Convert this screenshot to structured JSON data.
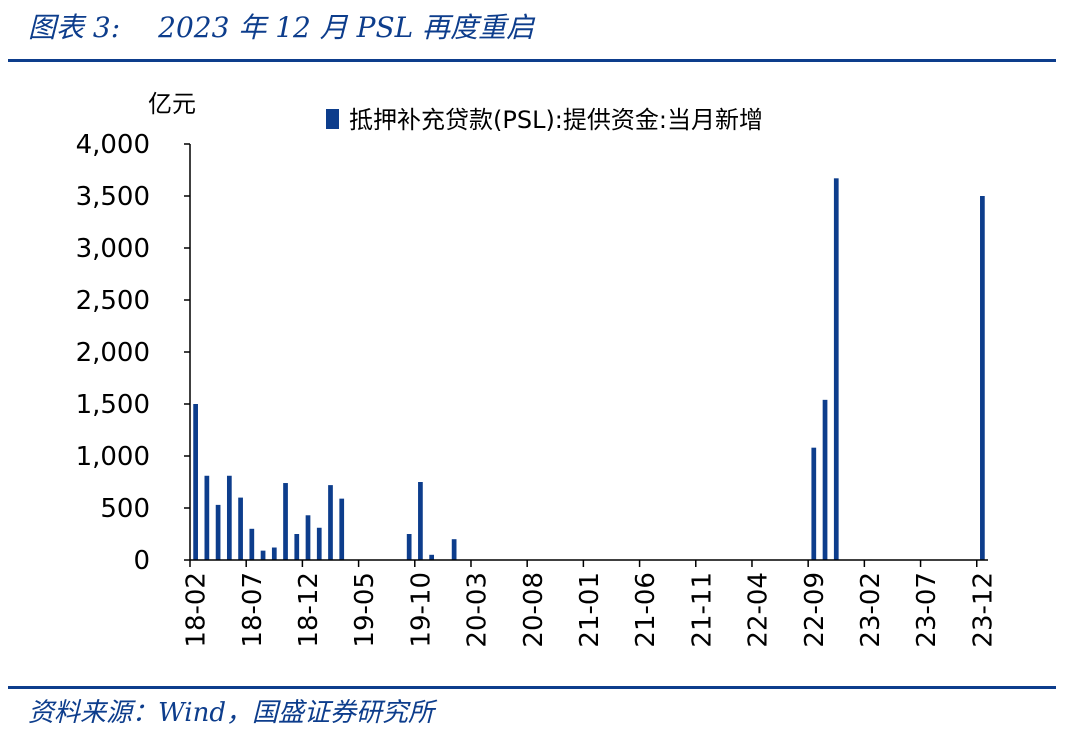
{
  "figure": {
    "number": "图表 3:",
    "title": "2023 年 12 月 PSL 再度重启",
    "source": "资料来源：Wind，国盛证券研究所"
  },
  "chart_data": {
    "type": "bar",
    "ylabel": "亿元",
    "ylim": [
      0,
      4000
    ],
    "yticks": [
      0,
      500,
      1000,
      1500,
      2000,
      2500,
      3000,
      3500,
      4000
    ],
    "ytick_labels": [
      "0",
      "500",
      "1,000",
      "1,500",
      "2,000",
      "2,500",
      "3,000",
      "3,500",
      "4,000"
    ],
    "xtick_labels": [
      "18-02",
      "18-07",
      "18-12",
      "19-05",
      "19-10",
      "20-03",
      "20-08",
      "21-01",
      "21-06",
      "21-11",
      "22-04",
      "22-09",
      "23-02",
      "23-07",
      "23-12"
    ],
    "legend": {
      "position": "top",
      "label": "抵押补充贷款(PSL):提供资金:当月新增"
    },
    "colors": {
      "bar": "#0d3d8c",
      "axis": "#000000"
    },
    "grid": false,
    "series": [
      {
        "name": "抵押补充贷款(PSL):提供资金:当月新增",
        "categories": [
          "18-02",
          "18-03",
          "18-04",
          "18-05",
          "18-06",
          "18-07",
          "18-08",
          "18-09",
          "18-10",
          "18-11",
          "18-12",
          "19-01",
          "19-02",
          "19-03",
          "19-04",
          "19-05",
          "19-06",
          "19-07",
          "19-08",
          "19-09",
          "19-10",
          "19-11",
          "19-12",
          "20-01",
          "20-02",
          "20-03",
          "20-04",
          "20-05",
          "20-06",
          "20-07",
          "20-08",
          "20-09",
          "20-10",
          "20-11",
          "20-12",
          "21-01",
          "21-02",
          "21-03",
          "21-04",
          "21-05",
          "21-06",
          "21-07",
          "21-08",
          "21-09",
          "21-10",
          "21-11",
          "21-12",
          "22-01",
          "22-02",
          "22-03",
          "22-04",
          "22-05",
          "22-06",
          "22-07",
          "22-08",
          "22-09",
          "22-10",
          "22-11",
          "22-12",
          "23-01",
          "23-02",
          "23-03",
          "23-04",
          "23-05",
          "23-06",
          "23-07",
          "23-08",
          "23-09",
          "23-10",
          "23-11",
          "23-12"
        ],
        "values": [
          1500,
          810,
          530,
          810,
          600,
          300,
          90,
          120,
          740,
          250,
          430,
          310,
          720,
          590,
          0,
          0,
          0,
          0,
          0,
          250,
          750,
          50,
          0,
          200,
          0,
          0,
          0,
          0,
          0,
          0,
          0,
          0,
          0,
          0,
          0,
          0,
          0,
          0,
          0,
          0,
          0,
          0,
          0,
          0,
          0,
          0,
          0,
          0,
          0,
          0,
          0,
          0,
          0,
          0,
          0,
          1080,
          1540,
          3670,
          0,
          0,
          5,
          0,
          0,
          0,
          0,
          0,
          0,
          0,
          0,
          0,
          3500
        ]
      }
    ]
  }
}
